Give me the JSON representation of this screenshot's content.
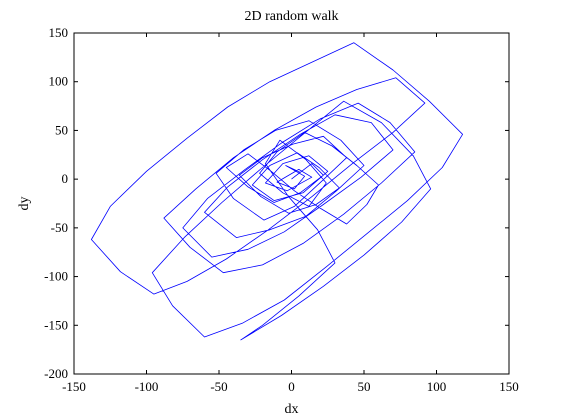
{
  "chart_data": {
    "type": "line",
    "title": "2D random walk",
    "xlabel": "dx",
    "ylabel": "dy",
    "xlim": [
      -150,
      150
    ],
    "ylim": [
      -200,
      150
    ],
    "xticks": [
      -150,
      -100,
      -50,
      0,
      50,
      100,
      150
    ],
    "yticks": [
      -200,
      -150,
      -100,
      -50,
      0,
      50,
      100,
      150
    ],
    "xtick_labels": [
      "-150",
      "-100",
      "-50",
      "0",
      "50",
      "100",
      "150"
    ],
    "ytick_labels": [
      "-200",
      "-150",
      "-100",
      "-50",
      "0",
      "50",
      "100",
      "150"
    ],
    "grid": false,
    "legend": "none",
    "line_color": "#0000ff",
    "series": [
      {
        "x": [
          0,
          6,
          -4,
          9,
          2,
          -10,
          5,
          14,
          -3,
          -18,
          -6,
          12,
          25,
          8,
          -12,
          -27,
          -15,
          4,
          19,
          33,
          17,
          -2,
          -21,
          -36,
          -20,
          1,
          22,
          38,
          21,
          2,
          -19,
          -40,
          -52,
          -33,
          -11,
          12,
          34,
          50,
          31,
          10,
          -15,
          -38,
          -60,
          -44,
          -20,
          6,
          30,
          55,
          70,
          48,
          22,
          -5,
          -30,
          -55,
          -75,
          -58,
          -32,
          -6,
          20,
          46,
          68,
          85,
          62,
          36,
          8,
          -20,
          -47,
          -70,
          -88,
          -66,
          -40,
          -12,
          17,
          45,
          72,
          92,
          70,
          42,
          14,
          -16,
          -45,
          -72,
          -95,
          -118,
          -138,
          -125,
          -100,
          -72,
          -44,
          -15,
          14,
          43,
          70,
          95,
          118,
          104,
          80,
          52,
          24,
          -5,
          -34,
          -60,
          -82,
          -96,
          -74,
          -48,
          -20,
          8,
          36,
          62,
          84,
          96,
          76,
          50,
          22,
          -7,
          -35,
          -20,
          5,
          30,
          18,
          -2,
          -18,
          -8,
          10,
          24,
          12,
          -6,
          -22,
          -10,
          9,
          28,
          45,
          60,
          52,
          38,
          20,
          2,
          -14,
          -30,
          -45,
          -30,
          -12,
          6,
          22,
          14,
          0
        ],
        "y": [
          0,
          7,
          14,
          3,
          -10,
          -3,
          10,
          2,
          -12,
          -4,
          16,
          24,
          8,
          -14,
          -22,
          -6,
          14,
          27,
          12,
          -9,
          -26,
          -35,
          -18,
          4,
          22,
          36,
          44,
          22,
          -2,
          -28,
          -42,
          -20,
          6,
          30,
          50,
          60,
          40,
          14,
          -12,
          -38,
          -52,
          -60,
          -34,
          -8,
          20,
          46,
          66,
          58,
          30,
          2,
          -26,
          -54,
          -72,
          -80,
          -50,
          -20,
          10,
          38,
          62,
          78,
          58,
          28,
          -4,
          -36,
          -66,
          -88,
          -96,
          -70,
          -40,
          -10,
          22,
          50,
          74,
          92,
          104,
          78,
          48,
          16,
          -18,
          -52,
          -82,
          -105,
          -118,
          -95,
          -62,
          -28,
          8,
          42,
          74,
          100,
          120,
          140,
          112,
          80,
          46,
          12,
          -22,
          -56,
          -90,
          -124,
          -148,
          -162,
          -130,
          -96,
          -60,
          -24,
          12,
          46,
          80,
          58,
          24,
          -10,
          -44,
          -78,
          -110,
          -140,
          -165,
          -150,
          -120,
          -86,
          -52,
          -18,
          16,
          40,
          20,
          -4,
          -28,
          -14,
          6,
          28,
          48,
          34,
          14,
          -6,
          -26,
          -46,
          -30,
          -12,
          8,
          26,
          12,
          -8,
          -24,
          -14,
          4,
          16,
          0
        ]
      }
    ]
  }
}
